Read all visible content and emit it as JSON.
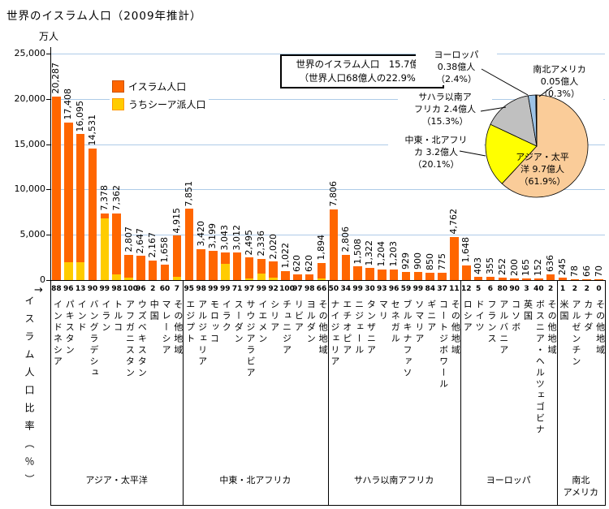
{
  "title": "世界のイスラム人口（2009年推計）",
  "y_axis": {
    "unit": "万人",
    "ticks": [
      {
        "value": 25000,
        "label": "25,000"
      },
      {
        "value": 20000,
        "label": "20,000"
      },
      {
        "value": 15000,
        "label": "15,000"
      },
      {
        "value": 10000,
        "label": "10,000"
      },
      {
        "value": 5000,
        "label": "5,000"
      },
      {
        "value": 0,
        "label": "0"
      }
    ]
  },
  "x_axis_row_label": {
    "arrow": "→",
    "text": "イスラム人口比率（％）"
  },
  "legend": [
    {
      "label": "イスラム人口",
      "color": "#ff6600",
      "border": "#cc5200"
    },
    {
      "label": "うちシーア派人口",
      "color": "#ffcc00",
      "border": "#ff9900"
    }
  ],
  "annotation_box": {
    "lines": [
      "世界のイスラム人口　15.7億人",
      "（世界人口68億人の22.9%）"
    ]
  },
  "groups": [
    {
      "lines": [
        "アジア・太平洋"
      ],
      "count": 11
    },
    {
      "lines": [
        "中東・北アフリカ"
      ],
      "count": 12
    },
    {
      "lines": [
        "サハラ以南アフリカ"
      ],
      "count": 11
    },
    {
      "lines": [
        "ヨーロッパ"
      ],
      "count": 8
    },
    {
      "lines": [
        "南北",
        "アメリカ"
      ],
      "count": 4
    }
  ],
  "pie_labels": [
    {
      "key": "asia",
      "lines": [
        "アジア・太平",
        "洋 9.7億人",
        "（61.9%）"
      ]
    },
    {
      "key": "mideast",
      "lines": [
        "中東・北アフリ",
        "カ 3.2億人",
        "（20.1%）"
      ]
    },
    {
      "key": "africa",
      "lines": [
        "サハラ以南ア",
        "フリカ 2.4億人",
        "（15.3%）"
      ]
    },
    {
      "key": "europe",
      "lines": [
        "ヨーロッパ",
        "0.38億人",
        "（2.4%）"
      ]
    },
    {
      "key": "americas",
      "lines": [
        "南北アメリカ",
        "0.05億人",
        "（0.3%）"
      ]
    }
  ],
  "chart_data": [
    {
      "type": "bar",
      "title": "世界のイスラム人口（2009年推計）",
      "ylabel": "万人",
      "ylim": [
        0,
        25000
      ],
      "grid": true,
      "x_pct_row_label": "イスラム人口比率（％）",
      "categories": [
        "インドネシア",
        "パキスタン",
        "インド",
        "バングラデシュ",
        "イラン",
        "トルコ",
        "アフガニスタン",
        "ウズベキスタン",
        "中国",
        "マレーシア",
        "その他地域",
        "エジプト",
        "アルジェリア",
        "モロッコ",
        "イラク",
        "スーダン",
        "サウジアラビア",
        "イエメン",
        "シリア",
        "チュニジア",
        "リビア",
        "ヨルダン",
        "その他地域",
        "ナイジェリア",
        "エチオピア",
        "ニジェール",
        "タンザニア",
        "マリ",
        "セネガル",
        "ブルキナファソ",
        "ソマリア",
        "ギニア",
        "コートジボワール",
        "その他地域",
        "ロシア",
        "ドイツ",
        "フランス",
        "アルバニア",
        "コソボ",
        "英国",
        "ボスニア・ヘルツェゴビナ",
        "その他地域",
        "米国",
        "アルゼンチン",
        "カナダ",
        "その他地域"
      ],
      "pct_muslim": [
        88,
        96,
        13,
        90,
        99,
        98,
        100,
        96,
        2,
        60,
        7,
        95,
        98,
        99,
        99,
        71,
        97,
        99,
        92,
        100,
        97,
        98,
        66,
        50,
        34,
        99,
        30,
        93,
        96,
        59,
        99,
        84,
        37,
        11,
        12,
        5,
        6,
        80,
        90,
        3,
        40,
        2,
        1,
        2,
        2,
        0
      ],
      "series": [
        {
          "name": "イスラム人口",
          "color": "#ff6600",
          "values": [
            20287,
            17408,
            16095,
            14531,
            7378,
            7362,
            2807,
            2647,
            2167,
            1658,
            4915,
            7851,
            3420,
            3199,
            3043,
            3012,
            2495,
            2336,
            2020,
            1022,
            620,
            620,
            1894,
            7806,
            2806,
            1508,
            1322,
            1204,
            1203,
            929,
            900,
            850,
            775,
            4762,
            1648,
            403,
            355,
            252,
            200,
            165,
            152,
            636,
            245,
            78,
            66,
            70
          ]
        },
        {
          "name": "うちシーア派人口",
          "color": "#ffcc00",
          "values": [
            0,
            2000,
            2000,
            0,
            6800,
            600,
            300,
            0,
            0,
            0,
            400,
            0,
            0,
            0,
            1800,
            0,
            200,
            700,
            300,
            0,
            0,
            0,
            200,
            0,
            0,
            0,
            0,
            0,
            0,
            0,
            0,
            0,
            0,
            0,
            0,
            0,
            0,
            0,
            0,
            0,
            0,
            0,
            0,
            0,
            0,
            0
          ]
        }
      ]
    },
    {
      "type": "pie",
      "unit": "億人",
      "legend_position": "callouts",
      "slices": [
        {
          "label": "アジア・太平洋",
          "value": 9.7,
          "pct": 61.9,
          "color": "#facc99"
        },
        {
          "label": "中東・北アフリカ",
          "value": 3.2,
          "pct": 20.1,
          "color": "#ffff00"
        },
        {
          "label": "サハラ以南アフリカ",
          "value": 2.4,
          "pct": 15.3,
          "color": "#c0c0c0"
        },
        {
          "label": "ヨーロッパ",
          "value": 0.38,
          "pct": 2.4,
          "color": "#9dc3e6"
        },
        {
          "label": "南北アメリカ",
          "value": 0.05,
          "pct": 0.3,
          "color": "#000000"
        }
      ]
    }
  ]
}
